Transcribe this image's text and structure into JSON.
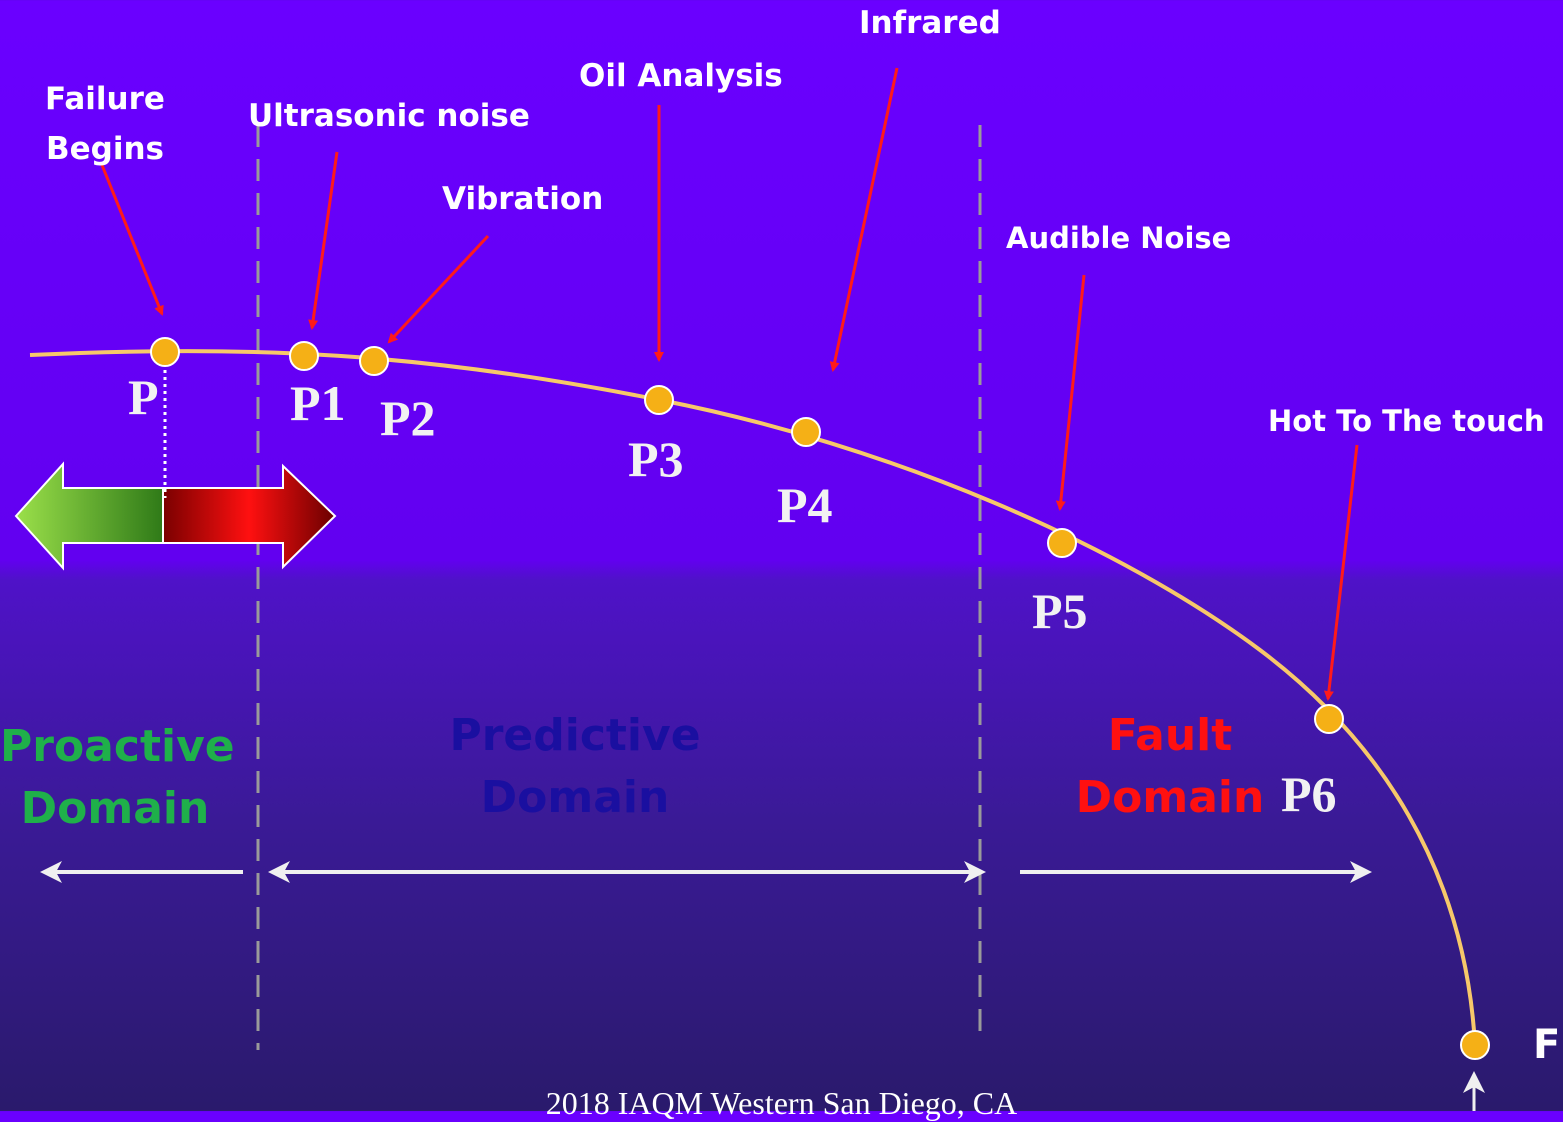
{
  "sensors": {
    "failure_begins": "Failure Begins",
    "ultrasonic": "Ultrasonic noise",
    "vibration": "Vibration",
    "oil": "Oil Analysis",
    "infrared": "Infrared",
    "audible": "Audible Noise",
    "hot": "Hot To The touch"
  },
  "points": {
    "p": "P",
    "p1": "P1",
    "p2": "P2",
    "p3": "P3",
    "p4": "P4",
    "p5": "P5",
    "p6": "P6",
    "f": "F"
  },
  "domains": {
    "proactive": {
      "line1": "Proactive",
      "line2": "Domain",
      "color": "#1fb04a"
    },
    "predictive": {
      "line1": "Predictive",
      "line2": "Domain",
      "color": "#1a0fa0"
    },
    "fault": {
      "line1": "Fault",
      "line2": "Domain",
      "color": "#ff1010"
    }
  },
  "footer": "2018 IAQM Western San Diego, CA",
  "colors": {
    "curve": "#f7c86a",
    "dot": "#f5b016",
    "arrow": "#ff1a1a"
  }
}
